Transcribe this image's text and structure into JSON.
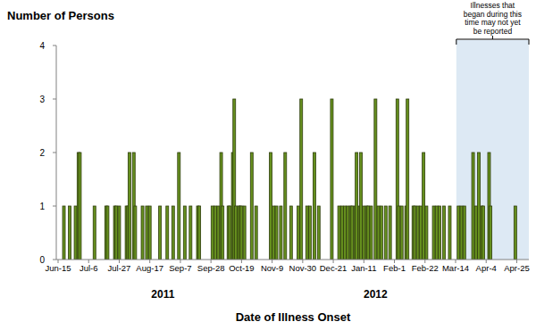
{
  "chart_data": {
    "type": "bar",
    "y_label": "Number of Persons",
    "x_label": "Date of Illness Onset",
    "categories": [
      "Jun-15",
      null,
      null,
      null,
      null,
      null,
      null,
      null,
      null,
      null,
      null,
      null,
      null,
      null,
      null,
      null,
      null,
      null,
      null,
      null,
      null,
      "Jul-6",
      null,
      null,
      null,
      null,
      null,
      null,
      null,
      null,
      null,
      null,
      null,
      null,
      null,
      null,
      null,
      null,
      null,
      null,
      null,
      null,
      "Jul-27",
      null,
      null,
      null,
      null,
      null,
      null,
      null,
      null,
      null,
      null,
      null,
      null,
      null,
      null,
      null,
      null,
      null,
      null,
      null,
      null,
      "Aug-17",
      null,
      null,
      null,
      null,
      null,
      null,
      null,
      null,
      null,
      null,
      null,
      null,
      null,
      null,
      null,
      null,
      null,
      null,
      null,
      null,
      "Sep-7",
      null,
      null,
      null,
      null,
      null,
      null,
      null,
      null,
      null,
      null,
      null,
      null,
      null,
      null,
      null,
      null,
      null,
      null,
      null,
      null,
      "Sep-28",
      null,
      null,
      null,
      null,
      null,
      null,
      null,
      null,
      null,
      null,
      null,
      null,
      null,
      null,
      null,
      null,
      null,
      null,
      null,
      null,
      "Oct-19",
      null,
      null,
      null,
      null,
      null,
      null,
      null,
      null,
      null,
      null,
      null,
      null,
      null,
      null,
      null,
      null,
      null,
      null,
      null,
      null,
      "Nov-9",
      null,
      null,
      null,
      null,
      null,
      null,
      null,
      null,
      null,
      null,
      null,
      null,
      null,
      null,
      null,
      null,
      null,
      null,
      null,
      null,
      "Nov-30",
      null,
      null,
      null,
      null,
      null,
      null,
      null,
      null,
      null,
      null,
      null,
      null,
      null,
      null,
      null,
      null,
      null,
      null,
      null,
      null,
      "Dec-21",
      null,
      null,
      null,
      null,
      null,
      null,
      null,
      null,
      null,
      null,
      null,
      null,
      null,
      null,
      null,
      null,
      null,
      null,
      null,
      null,
      "Jan-11",
      null,
      null,
      null,
      null,
      null,
      null,
      null,
      null,
      null,
      null,
      null,
      null,
      null,
      null,
      null,
      null,
      null,
      null,
      null,
      null,
      "Feb-1",
      null,
      null,
      null,
      null,
      null,
      null,
      null,
      null,
      null,
      null,
      null,
      null,
      null,
      null,
      null,
      null,
      null,
      null,
      null,
      null,
      "Feb-22",
      null,
      null,
      null,
      null,
      null,
      null,
      null,
      null,
      null,
      null,
      null,
      null,
      null,
      null,
      null,
      null,
      null,
      null,
      null,
      null,
      "Mar-14",
      null,
      null,
      null,
      null,
      null,
      null,
      null,
      null,
      null,
      null,
      null,
      null,
      null,
      null,
      null,
      null,
      null,
      null,
      null,
      null,
      "Apr-4",
      null,
      null,
      null,
      null,
      null,
      null,
      null,
      null,
      null,
      null,
      null,
      null,
      null,
      null,
      null,
      null,
      null,
      null,
      null,
      null,
      "Apr-25",
      null,
      null,
      null,
      null,
      null,
      null,
      null,
      null
    ],
    "values": [
      0,
      0,
      0,
      0,
      1,
      0,
      0,
      0,
      1,
      0,
      0,
      0,
      1,
      0,
      2,
      2,
      0,
      0,
      0,
      0,
      0,
      0,
      0,
      0,
      0,
      1,
      0,
      0,
      0,
      0,
      0,
      0,
      0,
      1,
      1,
      0,
      0,
      0,
      0,
      1,
      1,
      0,
      1,
      0,
      0,
      0,
      0,
      1,
      1,
      2,
      0,
      0,
      2,
      1,
      0,
      0,
      0,
      0,
      1,
      0,
      0,
      1,
      0,
      1,
      0,
      0,
      0,
      0,
      0,
      0,
      1,
      0,
      0,
      0,
      0,
      1,
      0,
      0,
      0,
      1,
      0,
      0,
      0,
      2,
      0,
      0,
      0,
      1,
      0,
      0,
      0,
      1,
      0,
      0,
      0,
      0,
      1,
      1,
      0,
      0,
      0,
      0,
      0,
      0,
      0,
      0,
      1,
      0,
      1,
      0,
      1,
      0,
      2,
      1,
      0,
      0,
      0,
      1,
      1,
      0,
      2,
      3,
      1,
      0,
      1,
      1,
      1,
      0,
      1,
      0,
      0,
      0,
      0,
      2,
      0,
      0,
      1,
      0,
      0,
      0,
      0,
      0,
      0,
      0,
      0,
      0,
      2,
      0,
      1,
      0,
      1,
      0,
      0,
      1,
      0,
      0,
      2,
      0,
      0,
      0,
      1,
      0,
      0,
      0,
      0,
      1,
      0,
      3,
      0,
      0,
      0,
      1,
      0,
      1,
      0,
      0,
      2,
      0,
      0,
      1,
      0,
      0,
      0,
      0,
      0,
      0,
      0,
      0,
      3,
      0,
      0,
      0,
      0,
      1,
      0,
      1,
      0,
      1,
      0,
      1,
      0,
      1,
      1,
      0,
      1,
      2,
      0,
      1,
      2,
      0,
      1,
      0,
      1,
      1,
      0,
      1,
      0,
      0,
      3,
      0,
      1,
      0,
      1,
      0,
      0,
      1,
      0,
      0,
      1,
      0,
      0,
      0,
      0,
      3,
      1,
      0,
      1,
      0,
      0,
      1,
      3,
      0,
      0,
      0,
      1,
      1,
      0,
      1,
      0,
      1,
      0,
      2,
      0,
      1,
      0,
      0,
      0,
      0,
      1,
      0,
      1,
      0,
      1,
      0,
      0,
      1,
      0,
      0,
      0,
      1,
      0,
      0,
      0,
      0,
      0,
      1,
      0,
      1,
      0,
      1,
      0,
      0,
      0,
      0,
      0,
      2,
      0,
      1,
      0,
      2,
      0,
      1,
      1,
      0,
      0,
      0,
      2,
      1,
      0,
      0,
      0,
      0,
      0,
      0,
      0,
      0,
      0,
      0,
      0,
      0,
      0,
      0,
      0,
      0,
      1,
      0,
      0,
      0,
      0,
      0,
      0,
      0,
      0,
      0
    ],
    "color": "#66901e",
    "ylim": [
      0,
      4
    ],
    "yticks": [
      0,
      1,
      2,
      3,
      4
    ],
    "grid": false,
    "annotations": [
      {
        "text": [
          "Illnesses that",
          "began during this",
          "time may not yet",
          "be reported"
        ],
        "start": 274,
        "end": 323
      },
      {
        "text": "2011",
        "x": 72
      },
      {
        "text": "2012",
        "x": 218
      }
    ]
  }
}
